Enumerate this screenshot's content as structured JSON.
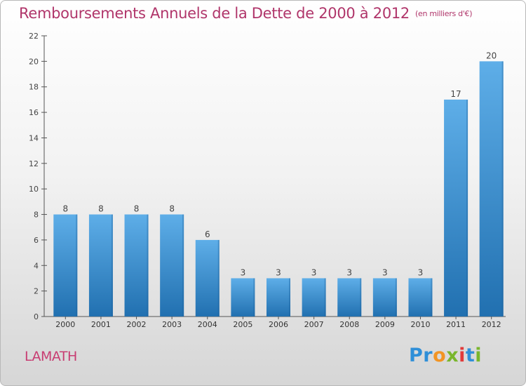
{
  "title": "Remboursements Annuels de la Dette de 2000 à 2012",
  "subtitle": "(en milliers d'€)",
  "commune": "LAMATH",
  "logo": {
    "text": "Proxiti",
    "colors": [
      "#2f8fd8",
      "#f29423",
      "#79b62c",
      "#e23a3a"
    ]
  },
  "colors": {
    "title": "#b0356a",
    "bar_top": "#5eaee8",
    "bar_bottom": "#2170b0",
    "axis": "#555555",
    "grid": "#cccccc"
  },
  "chart_data": {
    "type": "bar",
    "categories": [
      "2000",
      "2001",
      "2002",
      "2003",
      "2004",
      "2005",
      "2006",
      "2007",
      "2008",
      "2009",
      "2010",
      "2011",
      "2012"
    ],
    "values": [
      8,
      8,
      8,
      8,
      6,
      3,
      3,
      3,
      3,
      3,
      3,
      17,
      20
    ],
    "ylim": [
      0,
      22
    ],
    "yticks": [
      0,
      2,
      4,
      6,
      8,
      10,
      12,
      14,
      16,
      18,
      20,
      22
    ],
    "data_labels": true,
    "grid": false
  }
}
